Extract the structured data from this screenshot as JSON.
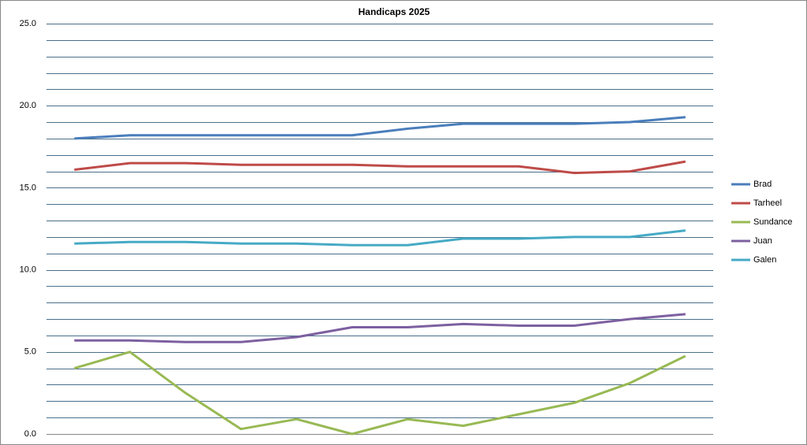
{
  "chart_data": {
    "type": "line",
    "title": "Handicaps 2025",
    "categories": [
      null,
      null,
      null,
      null,
      null,
      null,
      null,
      null,
      null,
      null,
      null,
      null
    ],
    "series": [
      {
        "name": "Brad",
        "color": "#4a7ebb",
        "values": [
          18.0,
          18.2,
          18.2,
          18.2,
          18.2,
          18.2,
          18.6,
          18.9,
          18.9,
          18.9,
          19.0,
          19.3
        ]
      },
      {
        "name": "Tarheel",
        "color": "#be4b48",
        "values": [
          16.1,
          16.5,
          16.5,
          16.4,
          16.4,
          16.4,
          16.3,
          16.3,
          16.3,
          15.9,
          16.0,
          16.6
        ]
      },
      {
        "name": "Sundance",
        "color": "#98b954",
        "values": [
          4.0,
          5.0,
          2.5,
          0.3,
          0.9,
          0.0,
          0.9,
          0.5,
          1.2,
          1.9,
          3.1,
          4.75
        ]
      },
      {
        "name": "Juan",
        "color": "#7d60a0",
        "values": [
          5.7,
          5.7,
          5.6,
          5.6,
          5.9,
          6.5,
          6.5,
          6.7,
          6.6,
          6.6,
          7.0,
          7.3
        ]
      },
      {
        "name": "Galen",
        "color": "#46aac5",
        "values": [
          11.6,
          11.7,
          11.7,
          11.6,
          11.6,
          11.5,
          11.5,
          11.9,
          11.9,
          12.0,
          12.0,
          12.4
        ]
      }
    ],
    "ylim": [
      0,
      25
    ],
    "yticks": [
      {
        "value": 0,
        "label": "0.0"
      },
      {
        "value": 5,
        "label": "5.0"
      },
      {
        "value": 10,
        "label": "10.0"
      },
      {
        "value": 15,
        "label": "15.0"
      },
      {
        "value": 20,
        "label": "20.0"
      },
      {
        "value": 25,
        "label": "25.0"
      }
    ],
    "y_minor_ticks": [
      0,
      1,
      2,
      3,
      4,
      5,
      6,
      7,
      8,
      9,
      10,
      11,
      12,
      13,
      14,
      15,
      16,
      17,
      18,
      19,
      20,
      21,
      22,
      23,
      24,
      25
    ],
    "grid": true,
    "legend": "right"
  }
}
